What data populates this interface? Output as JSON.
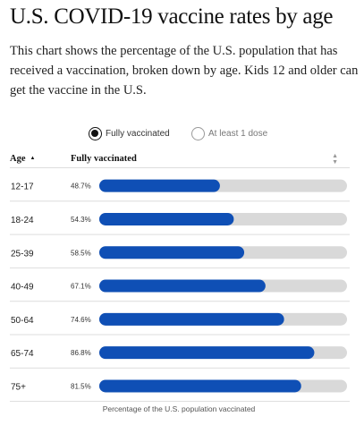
{
  "title": "U.S. COVID-19 vaccine rates by age",
  "subtitle": "This chart shows the percentage of the U.S. population that has received a vaccination, broken down by age. Kids 12 and older can get the vaccine in the U.S.",
  "toggles": {
    "fully_label": "Fully vaccinated",
    "dose_label": "At least 1 dose",
    "selected": "fully"
  },
  "table_header": {
    "age": "Age",
    "fully": "Fully vaccinated"
  },
  "footer_note": "Percentage of the U.S. population vaccinated",
  "colors": {
    "bar_fill": "#0f4fb5",
    "bar_track": "#d9d9d9",
    "row_rule": "#dddddd"
  },
  "chart_data": {
    "type": "bar",
    "orientation": "horizontal",
    "categories": [
      "12-17",
      "18-24",
      "25-39",
      "40-49",
      "50-64",
      "65-74",
      "75+"
    ],
    "values": [
      48.7,
      54.3,
      58.5,
      67.1,
      74.6,
      86.8,
      81.5
    ],
    "value_labels": [
      "48.7%",
      "54.3%",
      "58.5%",
      "67.1%",
      "74.6%",
      "86.8%",
      "81.5%"
    ],
    "xlabel": "Percentage of the U.S. population vaccinated",
    "xlim": [
      0,
      100
    ],
    "grid": false,
    "legend": "none"
  }
}
